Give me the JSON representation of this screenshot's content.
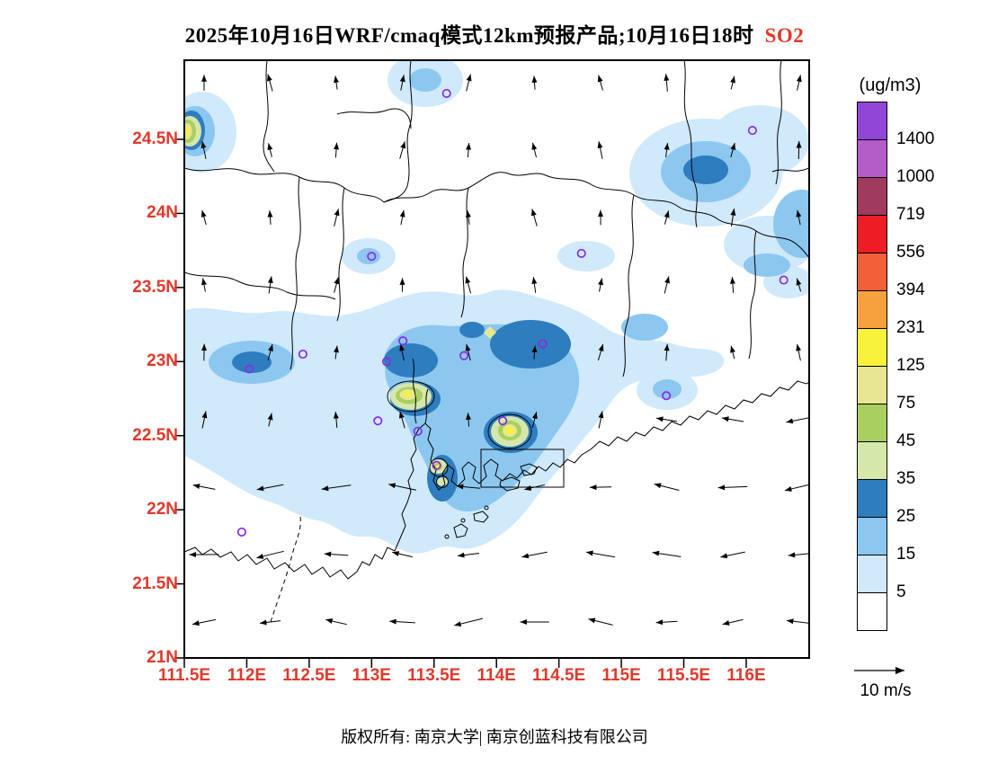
{
  "title": {
    "main": "2025年10月16日WRF/cmaq模式12km预报产品;10月16日18时",
    "species": "SO2"
  },
  "colors": {
    "axis_label_red": "#e0392b",
    "marker_purple": "#8a2be2",
    "boundary_black": "#000000"
  },
  "axes": {
    "lat_labels": [
      "24.5N",
      "24N",
      "23.5N",
      "23N",
      "22.5N",
      "22N",
      "21.5N",
      "21N"
    ],
    "lon_labels": [
      "111.5E",
      "112E",
      "112.5E",
      "113E",
      "113.5E",
      "114E",
      "114.5E",
      "115E",
      "115.5E",
      "116E"
    ]
  },
  "colorbar": {
    "unit": "(ug/m3)",
    "tick_labels": [
      "1400",
      "1000",
      "719",
      "556",
      "394",
      "231",
      "125",
      "75",
      "45",
      "35",
      "25",
      "15",
      "5"
    ]
  },
  "wind_reference": {
    "label": "10 m/s"
  },
  "footer": {
    "copyright": "版权所有: 南京大学| 南京创蓝科技有限公司"
  },
  "chart_data": {
    "type": "heatmap",
    "variant": "filled_contour_map_with_wind_vectors",
    "species": "SO2",
    "unit": "ug/m3",
    "model": "WRF/cmaq",
    "resolution": "12km",
    "issue_date": "2025年10月16日",
    "valid_time": "10月16日18时",
    "lon_range": [
      111.5,
      116.5
    ],
    "lat_range": [
      21.0,
      25.05
    ],
    "levels": [
      5,
      15,
      25,
      35,
      45,
      75,
      125,
      231,
      394,
      556,
      719,
      1000,
      1400
    ],
    "band_colors": [
      "#ffffff",
      "#d0e9fb",
      "#8cc7f0",
      "#2e7dbf",
      "#d5e7aa",
      "#a8cf60",
      "#e8e692",
      "#f8f23c",
      "#f7a13e",
      "#f2603a",
      "#ee1c24",
      "#a03a5f",
      "#b45cc8",
      "#9146d8"
    ],
    "wind_reference_speed": "10 m/s",
    "city_markers": [
      {
        "lon": 113.6,
        "lat": 24.81
      },
      {
        "lon": 116.05,
        "lat": 24.56
      },
      {
        "lon": 113.0,
        "lat": 23.71
      },
      {
        "lon": 114.68,
        "lat": 23.73
      },
      {
        "lon": 116.3,
        "lat": 23.55
      },
      {
        "lon": 112.45,
        "lat": 23.05
      },
      {
        "lon": 112.02,
        "lat": 22.95
      },
      {
        "lon": 113.25,
        "lat": 23.14
      },
      {
        "lon": 113.12,
        "lat": 23.0
      },
      {
        "lon": 113.74,
        "lat": 23.04
      },
      {
        "lon": 114.37,
        "lat": 23.12
      },
      {
        "lon": 113.05,
        "lat": 22.6
      },
      {
        "lon": 114.05,
        "lat": 22.6
      },
      {
        "lon": 113.37,
        "lat": 22.53
      },
      {
        "lon": 113.52,
        "lat": 22.3
      },
      {
        "lon": 115.36,
        "lat": 22.77
      },
      {
        "lon": 111.96,
        "lat": 21.85
      }
    ],
    "plume_maxima": [
      {
        "lon": 113.3,
        "lat": 22.74,
        "band": "125-231 ug/m3"
      },
      {
        "lon": 114.1,
        "lat": 22.53,
        "band": "125-231 ug/m3"
      },
      {
        "lon": 113.52,
        "lat": 22.28,
        "band": "125-231 ug/m3"
      },
      {
        "lon": 111.55,
        "lat": 24.52,
        "band": "125-231 ug/m3"
      },
      {
        "lon": 114.27,
        "lat": 23.1,
        "band": "25-35 ug/m3"
      },
      {
        "lon": 115.67,
        "lat": 24.3,
        "band": "25-35 ug/m3"
      },
      {
        "lon": 112.05,
        "lat": 22.97,
        "band": "25-35 ug/m3"
      }
    ]
  }
}
